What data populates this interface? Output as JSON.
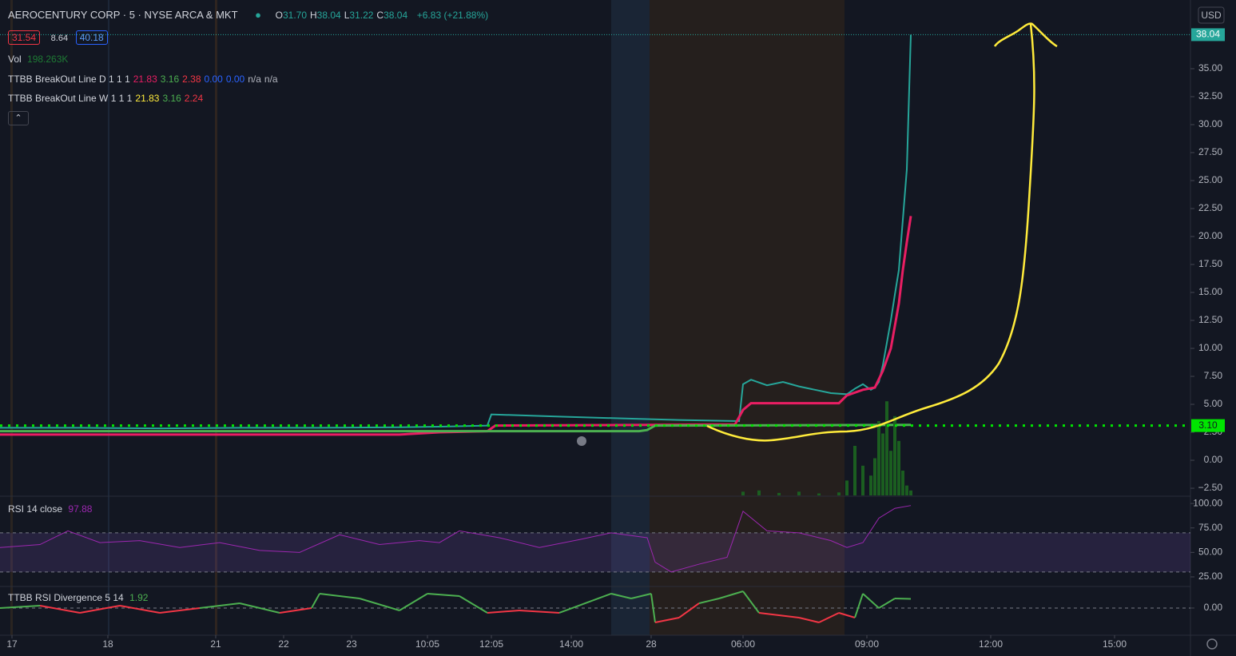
{
  "header": {
    "title": "AEROCENTURY CORP · 5 · NYSE ARCA & MKT",
    "ohlc": [
      {
        "label": "O",
        "value": "31.70"
      },
      {
        "label": "H",
        "value": "38.04"
      },
      {
        "label": "L",
        "value": "31.22"
      },
      {
        "label": "C",
        "value": "38.04"
      }
    ],
    "change": "+6.83 (+21.88%)",
    "bid": "31.54",
    "spread": "8.64",
    "ask": "40.18",
    "currency": "USD"
  },
  "chart_data": [
    {
      "type": "line",
      "title": "Vol",
      "volume_label": "198.263K",
      "xlim": [
        0,
        298
      ],
      "ylim": [
        -3.14,
        41.14
      ],
      "y2lim": [
        0,
        20000000
      ],
      "yticks": [
        {
          "value": -2.5,
          "label": "−2.50"
        },
        {
          "value": 0,
          "label": "0.00"
        },
        {
          "value": 2.5,
          "label": "2.50"
        },
        {
          "value": 5,
          "label": "5.00"
        },
        {
          "value": 7.5,
          "label": "7.50"
        },
        {
          "value": 10,
          "label": "10.00"
        },
        {
          "value": 12.5,
          "label": "12.50"
        },
        {
          "value": 15,
          "label": "15.00"
        },
        {
          "value": 17.5,
          "label": "17.50"
        },
        {
          "value": 20,
          "label": "20.00"
        },
        {
          "value": 22.5,
          "label": "22.50"
        },
        {
          "value": 25,
          "label": "25.00"
        },
        {
          "value": 27.5,
          "label": "27.50"
        },
        {
          "value": 30,
          "label": "30.00"
        },
        {
          "value": 32.5,
          "label": "32.50"
        },
        {
          "value": 35,
          "label": "35.00"
        }
      ],
      "last_price": 38.04,
      "price_line": {
        "value": 3.1,
        "label": "3.10"
      },
      "series": [
        {
          "color": "#26a69a",
          "x": [
            0,
            20,
            40,
            60,
            80,
            100,
            110,
            122,
            123,
            140,
            160,
            170,
            185,
            186,
            188,
            192,
            196,
            200,
            204,
            208,
            212,
            214,
            216,
            218,
            219,
            220,
            221,
            222,
            223,
            224,
            225,
            226,
            227,
            228
          ],
          "values": [
            2.9,
            2.9,
            2.85,
            2.9,
            2.9,
            2.95,
            3.0,
            3.1,
            4.1,
            3.9,
            3.7,
            3.6,
            3.5,
            6.8,
            7.2,
            6.7,
            7.0,
            6.6,
            6.3,
            6.0,
            5.9,
            6.4,
            6.8,
            6.3,
            6.5,
            7.0,
            8.5,
            10.5,
            12.5,
            14.8,
            17.0,
            21.5,
            26.0,
            38.04
          ]
        },
        {
          "name": "TTBB BreakOut Line D 1 1 1",
          "color": "#e91e63",
          "legend_values": [
            "21.83",
            "3.16",
            "2.38",
            "0.00",
            "0.00",
            "n/a",
            "n/a"
          ],
          "x": [
            0,
            100,
            110,
            122,
            124,
            184,
            186,
            188,
            210,
            212,
            216,
            219,
            221,
            223,
            225,
            226,
            227,
            228
          ],
          "values": [
            2.3,
            2.3,
            2.5,
            2.6,
            3.1,
            3.2,
            4.5,
            5.1,
            5.1,
            5.8,
            6.3,
            6.5,
            8.0,
            10,
            14,
            17,
            19.5,
            21.83
          ]
        },
        {
          "name": "TTBB BreakOut Line W 1 1 1",
          "color": "#4caf50",
          "legend_values": [
            "21.83",
            "3.16",
            "2.24"
          ],
          "x": [
            0,
            160,
            162,
            164,
            228
          ],
          "values": [
            2.6,
            2.6,
            2.7,
            3.1,
            3.16
          ]
        },
        {
          "name": "Vol",
          "type": "bar",
          "axis": "y2",
          "color": "#1b5e20",
          "x": [
            186,
            190,
            195,
            200,
            205,
            210,
            212,
            214,
            216,
            218,
            219,
            220,
            221,
            222,
            223,
            224,
            225,
            226,
            227,
            228
          ],
          "values": [
            150000,
            200000,
            100000,
            150000,
            80000,
            120000,
            600000,
            2000000,
            1200000,
            800000,
            1500000,
            3000000,
            2500000,
            3800000,
            1800000,
            3200000,
            2200000,
            1000000,
            400000,
            198263
          ]
        }
      ]
    },
    {
      "type": "line",
      "title": "RSI 14 close",
      "value_label": "97.88",
      "xlim": [
        0,
        298
      ],
      "ylim": [
        16,
        106.6
      ],
      "yticks": [
        {
          "value": 25,
          "label": "25.00"
        },
        {
          "value": 50,
          "label": "50.00"
        },
        {
          "value": 75,
          "label": "75.00"
        },
        {
          "value": 100,
          "label": "100.00"
        }
      ],
      "bands": [
        30,
        70
      ],
      "series": [
        {
          "color": "#9c27b0",
          "x": [
            0,
            10,
            17,
            25,
            35,
            45,
            55,
            65,
            75,
            85,
            95,
            105,
            110,
            115,
            125,
            135,
            145,
            153,
            162,
            164,
            168,
            175,
            182,
            186,
            192,
            200,
            208,
            212,
            216,
            220,
            224,
            228
          ],
          "values": [
            55,
            58,
            72,
            60,
            62,
            55,
            60,
            52,
            50,
            68,
            58,
            62,
            60,
            72,
            65,
            55,
            63,
            70,
            65,
            40,
            30,
            38,
            45,
            92,
            72,
            70,
            62,
            55,
            60,
            85,
            95,
            97.88
          ]
        }
      ]
    },
    {
      "type": "line",
      "title": "TTBB RSI Divergence 5 14",
      "value_label": "1.92",
      "xlim": [
        0,
        298
      ],
      "ylim": [
        -5.67,
        4.33
      ],
      "yticks": [
        {
          "value": 0,
          "label": "0.00"
        }
      ],
      "xticks": [
        {
          "value": 3,
          "label": "17"
        },
        {
          "value": 27,
          "label": "18"
        },
        {
          "value": 54,
          "label": "21"
        },
        {
          "value": 71,
          "label": "22"
        },
        {
          "value": 88,
          "label": "23"
        },
        {
          "value": 107,
          "label": "10:05"
        },
        {
          "value": 123,
          "label": "12:05"
        },
        {
          "value": 143,
          "label": "14:00"
        },
        {
          "value": 163,
          "label": "28"
        },
        {
          "value": 186,
          "label": "06:00"
        },
        {
          "value": 217,
          "label": "09:00"
        },
        {
          "value": 248,
          "label": "12:00"
        },
        {
          "value": 279,
          "label": "15:00"
        }
      ],
      "series": [
        {
          "color": "#4caf50",
          "color_down": "#f23645",
          "x": [
            0,
            10,
            20,
            30,
            40,
            50,
            60,
            70,
            78,
            80,
            90,
            100,
            107,
            115,
            122,
            130,
            140,
            153,
            158,
            163,
            164,
            170,
            175,
            180,
            186,
            190,
            200,
            205,
            210,
            214,
            216,
            220,
            224,
            228
          ],
          "values": [
            0,
            0.5,
            -1,
            0.5,
            -1,
            0,
            1,
            -1,
            0,
            3,
            2,
            -0.5,
            3,
            2.5,
            -1,
            -0.5,
            -1,
            3,
            2,
            3,
            -3,
            -2,
            1,
            2,
            3.5,
            -1,
            -2,
            -3,
            -1,
            -2,
            3,
            0,
            2,
            1.92
          ]
        }
      ]
    }
  ]
}
